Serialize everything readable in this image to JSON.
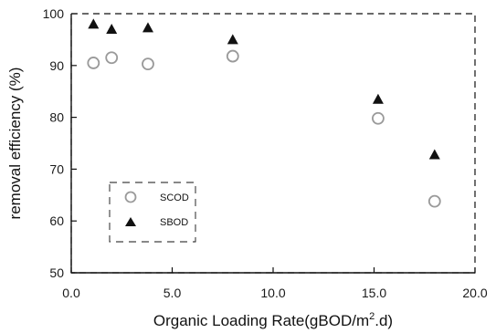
{
  "chart_data": {
    "type": "scatter",
    "xlabel": "Organic Loading Rate(gBOD/m2.d)",
    "xlabel_main": "Organic Loading Rate(gBOD/m",
    "xlabel_sup": "2",
    "xlabel_tail": ".d)",
    "ylabel": "removal efficiency (%)",
    "xlim": [
      0.0,
      20.0
    ],
    "ylim": [
      50,
      100
    ],
    "x_ticks": [
      "0.0",
      "5.0",
      "10.0",
      "15.0",
      "20.0"
    ],
    "y_ticks": [
      "50",
      "60",
      "70",
      "80",
      "90",
      "100"
    ],
    "legend_position": "lower-left",
    "grid": false,
    "colors": {
      "axis": "#111111",
      "marker_scod": "#9a9a9a",
      "marker_sbod": "#111111"
    },
    "series": [
      {
        "name": "SCOD",
        "marker": "open-circle",
        "x": [
          1.1,
          2.0,
          3.8,
          8.0,
          15.2,
          18.0
        ],
        "y": [
          90.5,
          91.5,
          90.3,
          91.8,
          79.8,
          63.8
        ]
      },
      {
        "name": "SBOD",
        "marker": "filled-triangle",
        "x": [
          1.1,
          2.0,
          3.8,
          8.0,
          15.2,
          18.0
        ],
        "y": [
          98.0,
          97.0,
          97.3,
          95.0,
          83.5,
          72.8
        ]
      }
    ]
  }
}
